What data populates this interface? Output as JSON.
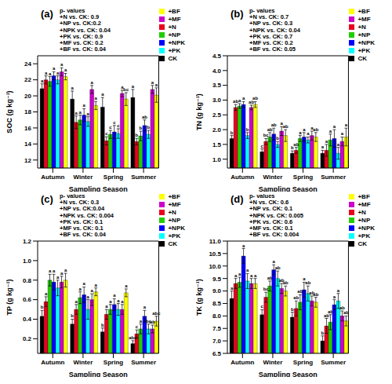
{
  "chart_data": [
    {
      "type": "bar",
      "title": "(a)",
      "y_label": "SOC (g kg⁻¹)",
      "x_label": "Sampling Season",
      "annotations": [
        "p- values",
        "+N vs. CK: 0.9",
        "+NP vs. CK:0.2",
        "+NPK vs. CK: 0.04",
        "+PK vs. CK: 0.9",
        "+MF vs. CK: 0.2",
        "+BF vs. CK: 0.04"
      ],
      "categories": [
        "Autumn",
        "Winter",
        "Spring",
        "Summer"
      ],
      "series": [
        {
          "name": "CK",
          "color": "#000000",
          "values": [
            20.9,
            19.6,
            18.6,
            19.8
          ],
          "errors": [
            0.6,
            1.0,
            1.2,
            1.0
          ],
          "letters": [
            "a",
            "a",
            "a",
            "a"
          ]
        },
        {
          "name": "+N",
          "color": "#e8001c",
          "values": [
            22.0,
            16.7,
            14.4,
            14.3
          ],
          "errors": [
            0.5,
            0.8,
            0.5,
            0.4
          ],
          "letters": [
            "a",
            "a",
            "c",
            "b"
          ]
        },
        {
          "name": "+NP",
          "color": "#22cc00",
          "values": [
            21.8,
            17.0,
            15.2,
            15.0
          ],
          "errors": [
            0.6,
            0.6,
            0.5,
            0.6
          ],
          "letters": [
            "a",
            "a",
            "c",
            "b"
          ]
        },
        {
          "name": "+NPK",
          "color": "#0000ff",
          "values": [
            22.5,
            17.6,
            15.5,
            16.3
          ],
          "errors": [
            0.5,
            0.8,
            0.8,
            0.7
          ],
          "letters": [
            "a",
            "a",
            "c",
            "ab"
          ]
        },
        {
          "name": "+PK",
          "color": "#00ffff",
          "values": [
            22.0,
            16.8,
            15.3,
            15.2
          ],
          "errors": [
            0.5,
            0.6,
            0.6,
            0.5
          ],
          "letters": [
            "a",
            "a",
            "c",
            "b"
          ]
        },
        {
          "name": "+MF",
          "color": "#cc00cc",
          "values": [
            23.0,
            20.8,
            20.3,
            20.8
          ],
          "errors": [
            0.5,
            0.5,
            0.4,
            0.5
          ],
          "letters": [
            "a",
            "a",
            "a",
            "a"
          ]
        },
        {
          "name": "+BF",
          "color": "#ffff00",
          "values": [
            22.4,
            18.8,
            19.6,
            20.1
          ],
          "errors": [
            0.4,
            0.5,
            0.8,
            0.9
          ],
          "letters": [
            "a",
            "a",
            "bc",
            "a"
          ]
        }
      ],
      "ylim": [
        11,
        25
      ],
      "yticks": [
        12,
        14,
        16,
        18,
        20,
        22,
        24
      ],
      "legend": "upper right"
    },
    {
      "type": "bar",
      "title": "(b)",
      "y_label": "TN (g kg⁻¹)",
      "x_label": "Sampling Season",
      "annotations": [
        "p- values",
        "+N vs. CK: 0.7",
        "+NP vs. CK: 0.3",
        "+NPK vs. CK: 0.04",
        "+PK vs. CK: 0.7",
        "+MF vs. CK: 0.2",
        "+BF vs. CK: 0.05"
      ],
      "categories": [
        "Autumn",
        "Winter",
        "Spring",
        "Summer"
      ],
      "series": [
        {
          "name": "CK",
          "color": "#000000",
          "values": [
            1.7,
            1.25,
            1.2,
            1.2
          ],
          "errors": [
            0.1,
            0.1,
            0.08,
            0.1
          ],
          "letters": [
            "b",
            "c",
            "b",
            "a"
          ]
        },
        {
          "name": "+N",
          "color": "#e8001c",
          "values": [
            2.75,
            1.6,
            1.3,
            1.3
          ],
          "errors": [
            0.1,
            0.1,
            0.1,
            0.2
          ],
          "letters": [
            "ab",
            "bc",
            "ab",
            "a"
          ]
        },
        {
          "name": "+NP",
          "color": "#22cc00",
          "values": [
            2.8,
            1.75,
            1.7,
            1.65
          ],
          "errors": [
            0.08,
            0.15,
            0.1,
            0.2
          ],
          "letters": [
            "a",
            "ab",
            "a",
            "a"
          ]
        },
        {
          "name": "+NPK",
          "color": "#0000ff",
          "values": [
            2.85,
            1.85,
            1.75,
            1.7
          ],
          "errors": [
            0.1,
            0.2,
            0.15,
            0.3
          ],
          "letters": [
            "a",
            "ab",
            "a",
            "a"
          ]
        },
        {
          "name": "+PK",
          "color": "#00ffff",
          "values": [
            1.8,
            1.5,
            1.65,
            1.2
          ],
          "errors": [
            0.1,
            0.1,
            0.1,
            0.2
          ],
          "letters": [
            "b",
            "b",
            "a",
            "a"
          ]
        },
        {
          "name": "+MF",
          "color": "#cc00cc",
          "values": [
            2.75,
            1.95,
            1.8,
            1.6
          ],
          "errors": [
            0.08,
            0.15,
            0.15,
            0.15
          ],
          "letters": [
            "ab",
            "a",
            "a",
            "a"
          ]
        },
        {
          "name": "+BF",
          "color": "#ffff00",
          "values": [
            2.85,
            1.8,
            1.75,
            1.75
          ],
          "errors": [
            0.1,
            0.2,
            0.15,
            0.3
          ],
          "letters": [
            "ab",
            "ab",
            "ab",
            "a"
          ]
        }
      ],
      "ylim": [
        0.7,
        4.5
      ],
      "yticks": [
        {
          "value": 1,
          "label": "1.0"
        },
        1.5,
        {
          "value": 2,
          "label": "2.0"
        },
        2.5,
        {
          "value": 3,
          "label": "3.0"
        },
        3.5,
        {
          "value": 4,
          "label": "4.0"
        },
        4.5
      ],
      "legend": "upper right"
    },
    {
      "type": "bar",
      "title": "(c)",
      "y_label": "TP (g kg⁻¹)",
      "x_label": "Sampling Season",
      "annotations": [
        "p- values",
        "+N vs. CK: 0.3",
        "+NP vs. CK:0.04",
        "+NPK vs. CK: 0.004",
        "+PK vs. CK: 0.1",
        "+MF vs. CK: 0.1",
        "+BF vs. CK: 0.04"
      ],
      "categories": [
        "Autumn",
        "Winter",
        "Spring",
        "Summer"
      ],
      "series": [
        {
          "name": "CK",
          "color": "#000000",
          "values": [
            0.43,
            0.35,
            0.27,
            0.15
          ],
          "errors": [
            0.06,
            0.05,
            0.04,
            0.03
          ],
          "letters": [
            "b",
            "b",
            "b",
            "abc"
          ]
        },
        {
          "name": "+N",
          "color": "#e8001c",
          "values": [
            0.58,
            0.5,
            0.45,
            0.25
          ],
          "errors": [
            0.05,
            0.05,
            0.05,
            0.04
          ],
          "letters": [
            "a",
            "a",
            "a",
            "c"
          ]
        },
        {
          "name": "+NP",
          "color": "#22cc00",
          "values": [
            0.8,
            0.62,
            0.5,
            0.3
          ],
          "errors": [
            0.06,
            0.06,
            0.05,
            0.05
          ],
          "letters": [
            "a",
            "a",
            "a",
            "a"
          ]
        },
        {
          "name": "+NPK",
          "color": "#0000ff",
          "values": [
            0.78,
            0.65,
            0.55,
            0.43
          ],
          "errors": [
            0.08,
            0.08,
            0.06,
            0.06
          ],
          "letters": [
            "a",
            "a",
            "a",
            "a"
          ]
        },
        {
          "name": "+PK",
          "color": "#00ffff",
          "values": [
            0.72,
            0.5,
            0.5,
            0.3
          ],
          "errors": [
            0.08,
            0.1,
            0.06,
            0.05
          ],
          "letters": [
            "a",
            "a",
            "a",
            "bc"
          ]
        },
        {
          "name": "+MF",
          "color": "#cc00cc",
          "values": [
            0.78,
            0.6,
            0.5,
            0.3
          ],
          "errors": [
            0.06,
            0.06,
            0.05,
            0.04
          ],
          "letters": [
            "a",
            "a",
            "a",
            "ab"
          ]
        },
        {
          "name": "+BF",
          "color": "#ffff00",
          "values": [
            0.8,
            0.68,
            0.67,
            0.38
          ],
          "errors": [
            0.07,
            0.04,
            0.04,
            0.05
          ],
          "letters": [
            "a",
            "a",
            "a",
            "abc"
          ]
        }
      ],
      "ylim": [
        0.05,
        1.2
      ],
      "yticks": [
        0.2,
        0.4,
        0.6,
        0.8,
        {
          "value": 1,
          "label": "1.0"
        },
        1.2
      ],
      "legend": "upper right"
    },
    {
      "type": "bar",
      "title": "(d)",
      "y_label": "TK (g kg⁻¹)",
      "x_label": "Sampling Season",
      "annotations": [
        "p- values",
        "+N vs. CK: 0.6",
        "+NP vs. CK: 0.1",
        "+NPK vs. CK: 0.005",
        "+PK vs. CK: 0.6",
        "+MF vs. CK: 0.1",
        "+BF vs. CK: 0.004"
      ],
      "categories": [
        "Autumn",
        "Winter",
        "Spring",
        "Summer"
      ],
      "series": [
        {
          "name": "CK",
          "color": "#000000",
          "values": [
            8.7,
            8.05,
            7.95,
            7.0
          ],
          "errors": [
            0.3,
            0.2,
            0.2,
            0.2
          ],
          "letters": [
            "a",
            "c",
            "b",
            "b"
          ]
        },
        {
          "name": "+N",
          "color": "#e8001c",
          "values": [
            9.3,
            8.75,
            8.3,
            7.6
          ],
          "errors": [
            0.2,
            0.2,
            0.3,
            0.3
          ],
          "letters": [
            "a",
            "bc",
            "ab",
            "ab"
          ]
        },
        {
          "name": "+NP",
          "color": "#22cc00",
          "values": [
            9.35,
            9.2,
            8.55,
            7.75
          ],
          "errors": [
            0.2,
            0.2,
            0.3,
            0.3
          ],
          "letters": [
            "a",
            "ab",
            "ab",
            "ab"
          ]
        },
        {
          "name": "+NPK",
          "color": "#0000ff",
          "values": [
            10.4,
            9.85,
            9.05,
            8.45
          ],
          "errors": [
            0.3,
            0.2,
            0.3,
            0.2
          ],
          "letters": [
            "a",
            "a",
            "a",
            "a"
          ]
        },
        {
          "name": "+PK",
          "color": "#00ffff",
          "values": [
            9.4,
            9.5,
            8.9,
            8.6
          ],
          "errors": [
            0.3,
            0.3,
            0.3,
            0.3
          ],
          "letters": [
            "a",
            "ab",
            "ab",
            "a"
          ]
        },
        {
          "name": "+MF",
          "color": "#cc00cc",
          "values": [
            9.3,
            9.1,
            8.6,
            8.0
          ],
          "errors": [
            0.2,
            0.2,
            0.2,
            0.2
          ],
          "letters": [
            "a",
            "ab",
            "ab",
            "ab"
          ]
        },
        {
          "name": "+BF",
          "color": "#ffff00",
          "values": [
            9.3,
            9.0,
            8.55,
            7.8
          ],
          "errors": [
            0.2,
            0.2,
            0.2,
            0.2
          ],
          "letters": [
            "a",
            "ab",
            "ab",
            "ab"
          ]
        }
      ],
      "ylim": [
        6.5,
        11
      ],
      "yticks": [
        6.5,
        {
          "value": 7,
          "label": "7.0"
        },
        7.5,
        {
          "value": 8,
          "label": "8.0"
        },
        8.5,
        {
          "value": 9,
          "label": "9.0"
        },
        9.5,
        {
          "value": 10,
          "label": "10.0"
        },
        10.5,
        {
          "value": 11,
          "label": "11.0"
        }
      ],
      "legend": "upper right"
    }
  ]
}
